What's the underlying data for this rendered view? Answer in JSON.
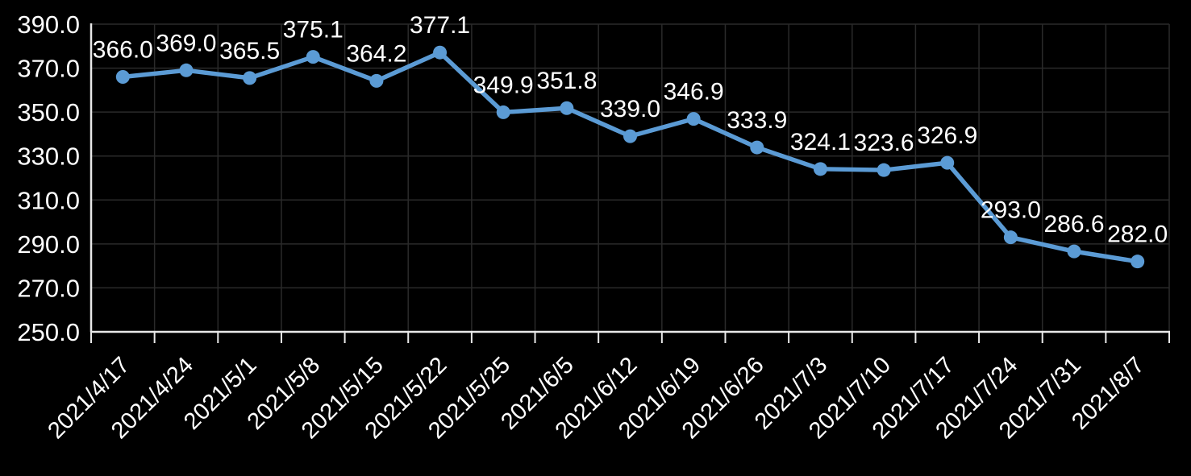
{
  "chart_data": {
    "type": "line",
    "title": "",
    "xlabel": "",
    "ylabel": "",
    "categories": [
      "2021/4/17",
      "2021/4/24",
      "2021/5/1",
      "2021/5/8",
      "2021/5/15",
      "2021/5/22",
      "2021/5/25",
      "2021/6/5",
      "2021/6/12",
      "2021/6/19",
      "2021/6/26",
      "2021/7/3",
      "2021/7/10",
      "2021/7/17",
      "2021/7/24",
      "2021/7/31",
      "2021/8/7"
    ],
    "values": [
      366.0,
      369.0,
      365.5,
      375.1,
      364.2,
      377.1,
      349.9,
      351.8,
      339.0,
      346.9,
      333.9,
      324.1,
      323.6,
      326.9,
      293.0,
      286.6,
      282.0
    ],
    "data_labels": [
      "366.0",
      "369.0",
      "365.5",
      "375.1",
      "364.2",
      "377.1",
      "349.9",
      "351.8",
      "339.0",
      "346.9",
      "333.9",
      "324.1",
      "323.6",
      "326.9",
      "293.0",
      "286.6",
      "282.0"
    ],
    "ylim": [
      250,
      390
    ],
    "ytick_step": 20,
    "ytick_labels": [
      "250.0",
      "270.0",
      "290.0",
      "310.0",
      "330.0",
      "350.0",
      "370.0",
      "390.0"
    ],
    "grid": true,
    "legend": false,
    "series_marker": "circle"
  },
  "style": {
    "background": "#000000",
    "line_color": "#5B9BD5",
    "marker_color": "#5B9BD5",
    "text_color": "#FFFFFF",
    "gridline_color": "#2A2A2A",
    "axis_color": "#E8E8E8"
  }
}
